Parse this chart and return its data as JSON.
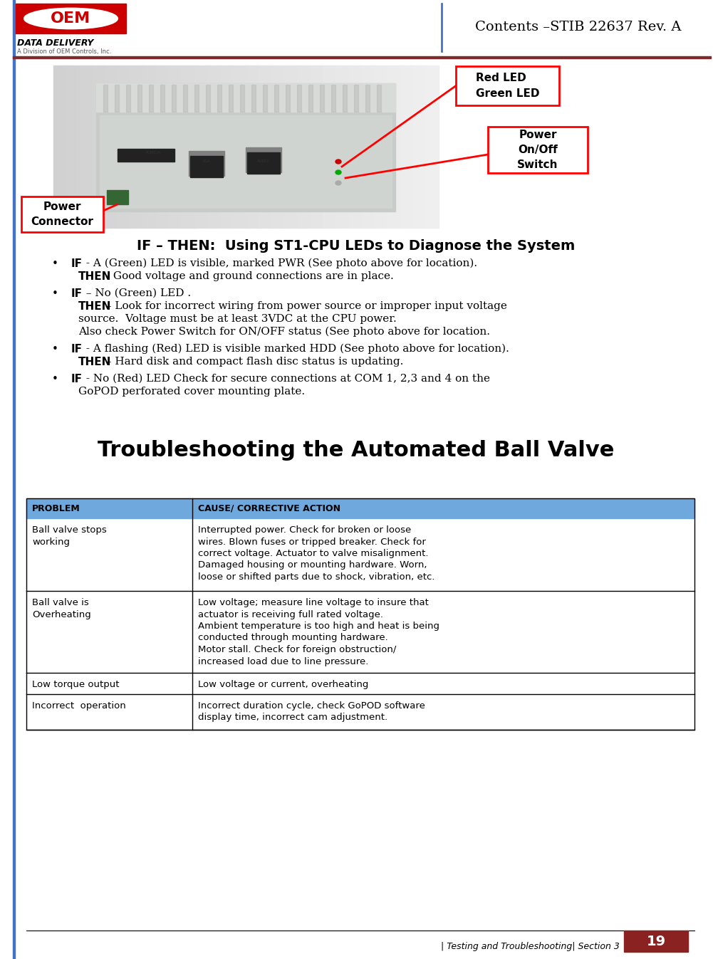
{
  "title_header": "Contents –STIB 22637 Rev. A",
  "footer_text": "| Testing and Troubleshooting| Section 3",
  "footer_number": "19",
  "section_title": "IF – THEN:  Using ST1-CPU LEDs to Diagnose the System",
  "bullets": [
    {
      "bold_prefix": "IF",
      "text1": " - A (Green) LED is visible, marked PWR (See photo above for location).",
      "bold_prefix2": "THEN",
      "text2": " - Good voltage and ground connections are in place."
    },
    {
      "bold_prefix": "IF",
      "text1": " – No (Green) LED .",
      "bold_prefix2": "THEN",
      "text2": " – Look for incorrect wiring from power source or improper input voltage\nsource.  Voltage must be at least 3VDC at the CPU power.\nAlso check Power Switch for ON/OFF status (See photo above for location."
    },
    {
      "bold_prefix": "IF",
      "text1": " - A flashing (Red) LED is visible marked HDD (See photo above for location).",
      "bold_prefix2": "THEN",
      "text2": " – Hard disk and compact flash disc status is updating."
    },
    {
      "bold_prefix": "IF",
      "text1": " - No (Red) LED Check for secure connections at COM 1, 2,3 and 4 on the\nGoPOD perforated cover mounting plate."
    }
  ],
  "troubleshoot_title": "Troubleshooting the Automated Ball Valve",
  "table_header_bg": "#6fa8dc",
  "table_header_color": "#000000",
  "table_col1_header": "PROBLEM",
  "table_col2_header": "CAUSE/ CORRECTIVE ACTION",
  "table_rows": [
    {
      "problem": "BALL VALVE STOPS\nWORKING",
      "cause": "INTERRUPTED POWER. CHECK FOR BROKEN OR LOOSE\nWIRES. BLOWN FUSES OR TRIPPED BREAKER. CHECK FOR\nCORRECT VOLTAGE. ACTUATOR TO VALVE MISALIGNMENT.\nDAMAGED HOUSING OR MOUNTING HARDWARE. WORN,\nLOOSE OR SHIFTED PARTS DUE TO SHOCK, VIBRATION, ETC."
    },
    {
      "problem": "BALL VALVE IS\nOVERHEATING",
      "cause": "LOW VOLTAGE; MEASURE LINE VOLTAGE TO INSURE THAT\nACTUATOR IS RECEIVING FULL RATED VOLTAGE.\nAMBIENT TEMPERATURE IS TOO HIGH AND HEAT IS BEING\nCONDUCTED THROUGH MOUNTING HARDWARE.\nMOTOR STALL. CHECK FOR FOREIGN OBSTRUCTION/\nINCREASED LOAD DUE TO LINE PRESSURE."
    },
    {
      "problem": "LOW TORQUE OUTPUT",
      "cause": "LOW VOLTAGE OR CURRENT, OVERHEATING"
    },
    {
      "problem": "INCORRECT  OPERATION",
      "cause": "INCORRECT DURATION CYCLE, CHECK GOPOD SOFTWARE\nDISPLAY TIME, INCORRECT CAM ADJUSTMENT."
    }
  ],
  "table_rows_display": [
    {
      "problem": "Ball valve stops\nworking",
      "cause_lines": [
        {
          "text": "Interrupted power. ",
          "bold_start": true
        },
        {
          "text": "Check for broken or loose"
        },
        {
          "text": "wires. "
        },
        {
          "text": "Blown fuses or tripped breaker. ",
          "bold_start": true
        },
        {
          "text": "Check for"
        },
        {
          "text": "correct voltage. "
        },
        {
          "text": "Actuator to valve misalignment.",
          "bold_start": true
        },
        {
          "text": "Damaged housing or mounting hardware. ",
          "bold_start": true
        },
        {
          "text": "Worn,"
        },
        {
          "text": "loose or shifted parts due to shock, vibration, etc."
        }
      ]
    }
  ],
  "callout_red_led": "Red LED\nGreen LED",
  "callout_power_switch": "Power\nOn/Off\nSwitch",
  "callout_power_connector": "Power\nConnector",
  "header_line_color": "#7b2c2c",
  "header_blue_line_color": "#4472c4",
  "footer_box_color": "#8b2222",
  "page_bg": "#ffffff",
  "left_border_color": "#4472c4",
  "logo_red": "#cc0000",
  "logo_text": "DATA DELIVERY",
  "logo_subtext": "A Division of OEM Controls, Inc."
}
